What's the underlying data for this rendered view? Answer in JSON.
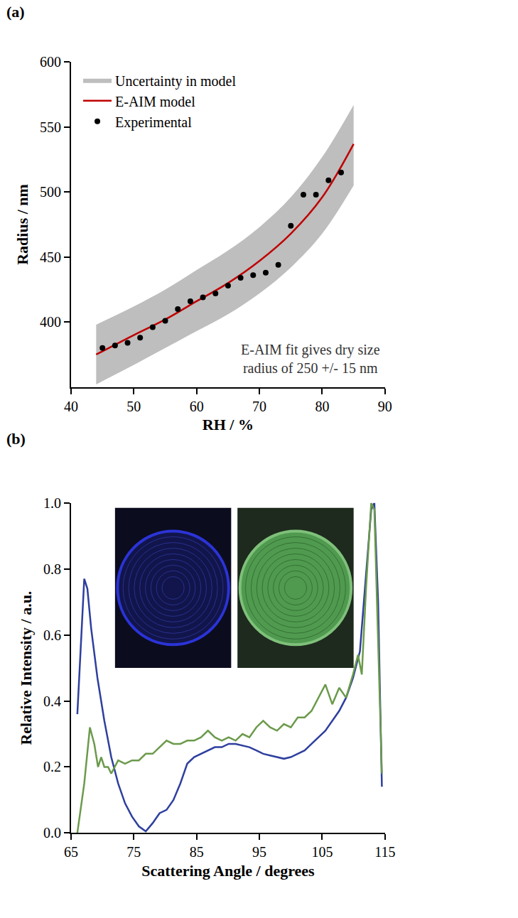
{
  "chart_data": [
    {
      "title": "(a)",
      "type": "scatter",
      "x_label": "RH / %",
      "y_label": "Radius / nm",
      "xlim": [
        40,
        90
      ],
      "xticks": [
        40,
        50,
        60,
        70,
        80,
        90
      ],
      "ylim": [
        350,
        600
      ],
      "yticks": [
        400,
        450,
        500,
        550,
        600
      ],
      "legend": "upper left",
      "annotations": [
        {
          "text": "E-AIM fit gives dry size\nradius of 250 +/- 15 nm"
        }
      ],
      "series": [
        {
          "name": "Experimental",
          "type": "scatter",
          "marker": "circle",
          "color": "#000000",
          "x": [
            45,
            47,
            49,
            51,
            53,
            55,
            57,
            59,
            61,
            63,
            65,
            67,
            69,
            71,
            73,
            75,
            77,
            79,
            81,
            83
          ],
          "values": [
            380,
            382,
            384,
            388,
            396,
            401,
            410,
            416,
            419,
            422,
            428,
            434,
            436,
            438,
            444,
            474,
            498,
            498,
            509,
            515
          ]
        },
        {
          "name": "E-AIM model",
          "type": "line",
          "color": "#c00000",
          "x": [
            44,
            50,
            55,
            60,
            65,
            70,
            75,
            80,
            85
          ],
          "values": [
            375,
            390,
            402,
            416,
            430,
            447,
            468,
            496,
            537
          ]
        },
        {
          "name": "Uncertainty in model",
          "type": "band",
          "color": "#bebebe",
          "x": [
            44,
            50,
            55,
            60,
            65,
            70,
            75,
            80,
            85
          ],
          "lower": [
            352,
            367,
            380,
            393,
            406,
            422,
            442,
            468,
            505
          ],
          "upper": [
            398,
            412,
            425,
            440,
            455,
            473,
            496,
            527,
            567
          ]
        }
      ]
    },
    {
      "title": "(b)",
      "type": "line",
      "x_label": "Scattering Angle / degrees",
      "y_label": "Relative Intensity / a.u.",
      "xlim": [
        65,
        115
      ],
      "xticks": [
        65,
        75,
        85,
        95,
        105,
        115
      ],
      "ylim": [
        0,
        1
      ],
      "yticks": [
        {
          "value": 0,
          "label": "0.0"
        },
        0.2,
        0.4,
        0.6,
        0.8,
        {
          "value": 1,
          "label": "1.0"
        }
      ],
      "series": [
        {
          "type": "line",
          "color": "#2e3f9e",
          "x": [
            66,
            66.6,
            67.1,
            67.6,
            68.2,
            69.2,
            70.3,
            71.4,
            72.5,
            73.6,
            74.7,
            75.8,
            76.9,
            78,
            79.1,
            80.2,
            81.3,
            82.4,
            83.5,
            84.6,
            85.7,
            86.8,
            87.9,
            89,
            90.1,
            91.2,
            92.3,
            93.4,
            94.5,
            95.6,
            96.7,
            97.8,
            98.9,
            100,
            101.1,
            102.2,
            103.3,
            104.4,
            105.5,
            106.6,
            107.7,
            108.8,
            109.9,
            111,
            112,
            112.8,
            113.3,
            113.9,
            114.5
          ],
          "values": [
            0.36,
            0.6,
            0.77,
            0.74,
            0.62,
            0.47,
            0.34,
            0.23,
            0.15,
            0.09,
            0.05,
            0.02,
            0.005,
            0.03,
            0.06,
            0.07,
            0.1,
            0.15,
            0.21,
            0.23,
            0.24,
            0.25,
            0.26,
            0.26,
            0.27,
            0.27,
            0.265,
            0.26,
            0.25,
            0.24,
            0.235,
            0.23,
            0.225,
            0.23,
            0.24,
            0.25,
            0.27,
            0.29,
            0.31,
            0.34,
            0.37,
            0.41,
            0.47,
            0.55,
            0.78,
            0.98,
            1.0,
            0.7,
            0.14
          ]
        },
        {
          "type": "line",
          "color": "#6b9a4b",
          "x": [
            66,
            67.1,
            68,
            68.7,
            69.3,
            69.8,
            70.3,
            70.9,
            71.4,
            72.5,
            73.6,
            74.7,
            75.8,
            76.9,
            78,
            79.1,
            80.2,
            81.3,
            82.4,
            83.5,
            84.6,
            85.7,
            86.8,
            87.9,
            89,
            90.1,
            91.2,
            92.3,
            93.4,
            94.5,
            95.6,
            96.7,
            97.8,
            98.9,
            100,
            101.1,
            102.2,
            103.3,
            104.4,
            105.5,
            106.6,
            107.7,
            108.8,
            109.9,
            110.7,
            111.3,
            112,
            112.8,
            113.3,
            113.9,
            114.5
          ],
          "values": [
            0,
            0.15,
            0.32,
            0.27,
            0.2,
            0.23,
            0.2,
            0.2,
            0.18,
            0.22,
            0.21,
            0.22,
            0.22,
            0.24,
            0.24,
            0.26,
            0.28,
            0.27,
            0.27,
            0.28,
            0.28,
            0.29,
            0.31,
            0.29,
            0.28,
            0.29,
            0.28,
            0.3,
            0.29,
            0.32,
            0.34,
            0.32,
            0.31,
            0.33,
            0.32,
            0.35,
            0.35,
            0.37,
            0.41,
            0.45,
            0.39,
            0.44,
            0.41,
            0.48,
            0.54,
            0.48,
            0.75,
            1.0,
            0.98,
            0.6,
            0.18
          ]
        }
      ]
    }
  ]
}
